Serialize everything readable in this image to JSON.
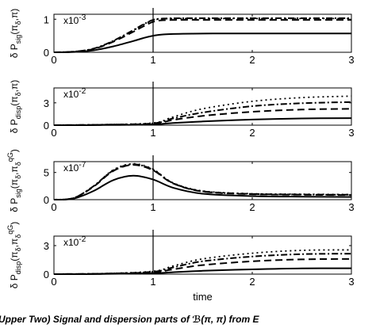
{
  "caption": "(Upper Two) Signal and dispersion parts of ℬ(π, π) from E",
  "chart_data": [
    {
      "type": "line",
      "ylabel": "δ P_sig(π_δ,π)",
      "exponent_label": "x10^-3",
      "xlim": [
        0,
        3
      ],
      "ylim": [
        0,
        1.15
      ],
      "xticks": [
        0,
        1,
        2,
        3
      ],
      "yticks": [
        0,
        1
      ],
      "vline_x": 1,
      "series": [
        {
          "style": "solid",
          "x": [
            0,
            0.2,
            0.4,
            0.6,
            0.8,
            0.9,
            1.0,
            1.1,
            1.3,
            1.6,
            2.0,
            2.5,
            3.0
          ],
          "y": [
            0,
            0.01,
            0.06,
            0.18,
            0.34,
            0.43,
            0.5,
            0.54,
            0.56,
            0.57,
            0.57,
            0.57,
            0.57
          ]
        },
        {
          "style": "dashed",
          "x": [
            0,
            0.2,
            0.4,
            0.6,
            0.8,
            0.9,
            1.0,
            1.1,
            1.3,
            1.6,
            2.0,
            2.5,
            3.0
          ],
          "y": [
            0,
            0.02,
            0.1,
            0.32,
            0.62,
            0.78,
            0.92,
            0.97,
            0.98,
            0.98,
            0.98,
            0.98,
            0.98
          ]
        },
        {
          "style": "dotted",
          "x": [
            0,
            0.2,
            0.4,
            0.6,
            0.8,
            0.9,
            1.0,
            1.1,
            1.3,
            1.6,
            2.0,
            2.5,
            3.0
          ],
          "y": [
            0,
            0.02,
            0.11,
            0.34,
            0.66,
            0.83,
            0.97,
            1.01,
            1.02,
            1.02,
            1.02,
            1.02,
            1.02
          ]
        },
        {
          "style": "dashdot",
          "x": [
            0,
            0.2,
            0.4,
            0.6,
            0.8,
            0.9,
            1.0,
            1.1,
            1.3,
            1.6,
            2.0,
            2.5,
            3.0
          ],
          "y": [
            0,
            0.02,
            0.11,
            0.35,
            0.67,
            0.84,
            0.98,
            1.02,
            1.03,
            1.03,
            1.03,
            1.03,
            1.03
          ]
        }
      ]
    },
    {
      "type": "line",
      "ylabel": "δ P_disp(π_δ,π)",
      "exponent_label": "x10^-2",
      "xlim": [
        0,
        3
      ],
      "ylim": [
        0,
        5
      ],
      "xticks": [
        0,
        1,
        2,
        3
      ],
      "yticks": [
        0,
        3
      ],
      "vline_x": 1,
      "series": [
        {
          "style": "solid",
          "x": [
            0,
            0.5,
            1.0,
            1.2,
            1.5,
            2.0,
            2.5,
            3.0
          ],
          "y": [
            0,
            0.02,
            0.1,
            0.3,
            0.5,
            0.75,
            0.9,
            0.95
          ]
        },
        {
          "style": "dashed",
          "x": [
            0,
            0.5,
            1.0,
            1.2,
            1.5,
            2.0,
            2.5,
            3.0
          ],
          "y": [
            0,
            0.05,
            0.2,
            0.7,
            1.25,
            1.8,
            2.1,
            2.2
          ]
        },
        {
          "style": "dashdot",
          "x": [
            0,
            0.5,
            1.0,
            1.2,
            1.5,
            2.0,
            2.5,
            3.0
          ],
          "y": [
            0,
            0.06,
            0.25,
            0.9,
            1.7,
            2.55,
            2.95,
            3.1
          ]
        },
        {
          "style": "dotted",
          "x": [
            0,
            0.5,
            1.0,
            1.2,
            1.5,
            2.0,
            2.5,
            3.0
          ],
          "y": [
            0,
            0.07,
            0.3,
            1.1,
            2.2,
            3.2,
            3.7,
            3.9
          ]
        }
      ]
    },
    {
      "type": "line",
      "ylabel": "δ P_sig(π_δ,π_δ^qG)",
      "exponent_label": "x10^-7",
      "xlim": [
        0,
        3
      ],
      "ylim": [
        0,
        7
      ],
      "xticks": [
        0,
        1,
        2,
        3
      ],
      "yticks": [
        0,
        5
      ],
      "vline_x": 1,
      "series": [
        {
          "style": "solid",
          "x": [
            0,
            0.2,
            0.4,
            0.6,
            0.8,
            1.0,
            1.2,
            1.5,
            2.0,
            2.5,
            3.0
          ],
          "y": [
            0,
            0.2,
            1.6,
            3.6,
            4.4,
            3.7,
            2.2,
            1.1,
            0.65,
            0.55,
            0.5
          ]
        },
        {
          "style": "dashed",
          "x": [
            0,
            0.2,
            0.4,
            0.6,
            0.8,
            1.0,
            1.2,
            1.5,
            2.0,
            2.5,
            3.0
          ],
          "y": [
            0,
            0.3,
            2.4,
            5.3,
            6.4,
            5.4,
            3.0,
            1.5,
            1.0,
            0.9,
            0.85
          ]
        },
        {
          "style": "dotted",
          "x": [
            0,
            0.2,
            0.4,
            0.6,
            0.8,
            1.0,
            1.2,
            1.5,
            2.0,
            2.5,
            3.0
          ],
          "y": [
            0,
            0.3,
            2.5,
            5.5,
            6.6,
            5.6,
            3.1,
            1.6,
            1.1,
            1.0,
            0.95
          ]
        },
        {
          "style": "dashdot",
          "x": [
            0,
            0.2,
            0.4,
            0.6,
            0.8,
            1.0,
            1.2,
            1.5,
            2.0,
            2.5,
            3.0
          ],
          "y": [
            0,
            0.3,
            2.5,
            5.4,
            6.5,
            5.5,
            3.05,
            1.55,
            1.05,
            0.95,
            0.9
          ]
        }
      ]
    },
    {
      "type": "line",
      "ylabel": "δ P_disp(π_δ,π_δ^qG)",
      "exponent_label": "x10^-2",
      "xlabel": "time",
      "xlim": [
        0,
        3
      ],
      "ylim": [
        0,
        4
      ],
      "xticks": [
        0,
        1,
        2,
        3
      ],
      "yticks": [
        0,
        3
      ],
      "vline_x": 1,
      "series": [
        {
          "style": "solid",
          "x": [
            0,
            0.5,
            1.0,
            1.2,
            1.5,
            2.0,
            2.5,
            3.0
          ],
          "y": [
            0,
            0.02,
            0.1,
            0.2,
            0.35,
            0.5,
            0.6,
            0.62
          ]
        },
        {
          "style": "dashed",
          "x": [
            0,
            0.5,
            1.0,
            1.2,
            1.5,
            2.0,
            2.5,
            3.0
          ],
          "y": [
            0,
            0.04,
            0.2,
            0.5,
            0.95,
            1.35,
            1.55,
            1.6
          ]
        },
        {
          "style": "dashdot",
          "x": [
            0,
            0.5,
            1.0,
            1.2,
            1.5,
            2.0,
            2.5,
            3.0
          ],
          "y": [
            0,
            0.05,
            0.25,
            0.7,
            1.35,
            1.85,
            2.1,
            2.15
          ]
        },
        {
          "style": "dotted",
          "x": [
            0,
            0.5,
            1.0,
            1.2,
            1.5,
            2.0,
            2.5,
            3.0
          ],
          "y": [
            0,
            0.06,
            0.3,
            0.85,
            1.6,
            2.2,
            2.5,
            2.55
          ]
        }
      ]
    }
  ]
}
